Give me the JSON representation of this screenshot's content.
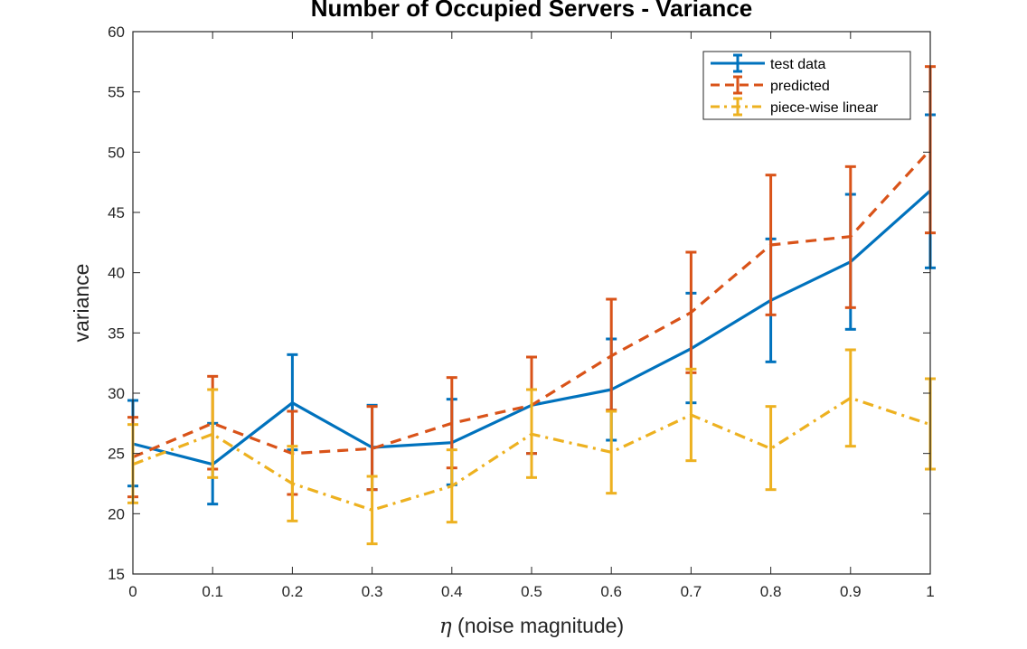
{
  "chart_data": {
    "type": "line",
    "title": "Number of Occupied Servers - Variance",
    "xlabel_symbol": "η",
    "xlabel_text": " (noise magnitude)",
    "ylabel": "variance",
    "x": [
      0,
      0.1,
      0.2,
      0.3,
      0.4,
      0.5,
      0.6,
      0.7,
      0.8,
      0.9,
      1
    ],
    "xlim": [
      0,
      1
    ],
    "ylim": [
      15,
      60
    ],
    "x_ticks": [
      "0",
      "0.1",
      "0.2",
      "0.3",
      "0.4",
      "0.5",
      "0.6",
      "0.7",
      "0.8",
      "0.9",
      "1"
    ],
    "y_ticks": [
      "15",
      "20",
      "25",
      "30",
      "35",
      "40",
      "45",
      "50",
      "55",
      "60"
    ],
    "legend_position": "top-right",
    "series": [
      {
        "name": "test data",
        "color": "#0072BD",
        "style": "solid",
        "values": [
          25.8,
          24.1,
          29.2,
          25.5,
          25.9,
          29.0,
          30.3,
          33.7,
          37.7,
          40.9,
          46.8
        ],
        "lower": [
          22.3,
          20.8,
          25.3,
          22.0,
          22.4,
          25.0,
          26.1,
          29.2,
          32.6,
          35.3,
          40.4
        ],
        "upper": [
          29.4,
          27.5,
          33.2,
          29.0,
          29.5,
          33.0,
          34.5,
          38.3,
          42.8,
          46.5,
          53.1
        ]
      },
      {
        "name": "predicted",
        "color": "#D95319",
        "style": "dashed",
        "values": [
          24.7,
          27.5,
          25.0,
          25.4,
          27.5,
          29.0,
          33.1,
          36.7,
          42.3,
          43.0,
          50.2
        ],
        "lower": [
          21.4,
          23.7,
          21.6,
          22.0,
          23.8,
          25.0,
          28.6,
          31.7,
          36.5,
          37.1,
          43.3
        ],
        "upper": [
          28.0,
          31.4,
          28.5,
          28.9,
          31.3,
          33.0,
          37.8,
          41.7,
          48.1,
          48.8,
          57.1
        ]
      },
      {
        "name": "piece-wise linear",
        "color": "#EDB120",
        "style": "dashdot",
        "values": [
          24.1,
          26.6,
          22.5,
          20.3,
          22.3,
          26.6,
          25.1,
          28.2,
          25.4,
          29.6,
          27.4
        ],
        "lower": [
          20.9,
          23.0,
          19.4,
          17.5,
          19.3,
          23.0,
          21.7,
          24.4,
          22.0,
          25.6,
          23.7
        ],
        "upper": [
          27.4,
          30.3,
          25.6,
          23.1,
          25.3,
          30.3,
          28.5,
          32.0,
          28.9,
          33.6,
          31.2
        ]
      }
    ]
  }
}
